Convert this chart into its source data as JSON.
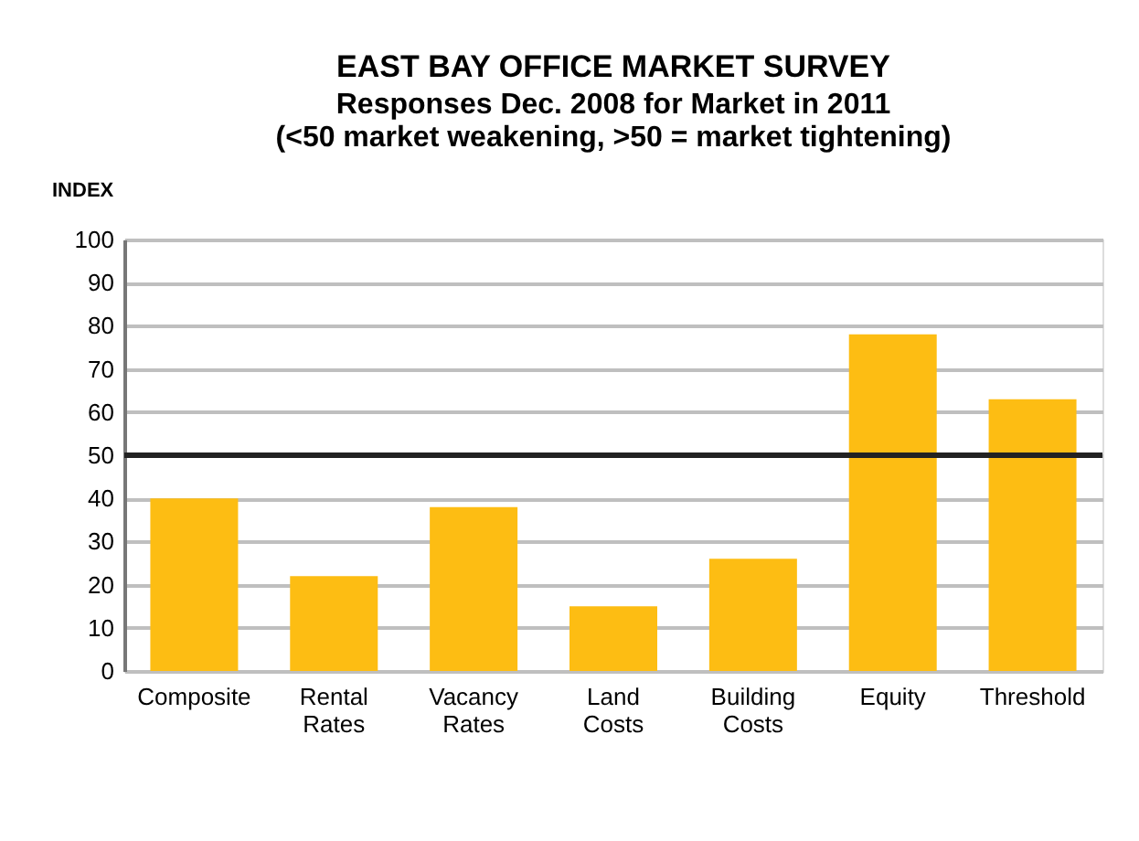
{
  "chart_data": {
    "type": "bar",
    "title": "EAST BAY OFFICE MARKET SURVEY",
    "subtitle": "Responses Dec. 2008 for Market in 2011\n(<50 market weakening, >50 = market tightening)",
    "ylabel": "INDEX",
    "categories": [
      "Composite",
      "Rental Rates",
      "Vacancy Rates",
      "Land Costs",
      "Building Costs",
      "Equity",
      "Threshold"
    ],
    "values": [
      40,
      22,
      38,
      15,
      26,
      78,
      63
    ],
    "color": "#fdbd13",
    "ylim": [
      0,
      100
    ],
    "yticks": [
      0,
      10,
      20,
      30,
      40,
      50,
      60,
      70,
      80,
      90,
      100
    ],
    "grid": "y",
    "ref_lines": [
      {
        "axis": "y",
        "value": 50,
        "color": "#222222"
      }
    ]
  }
}
